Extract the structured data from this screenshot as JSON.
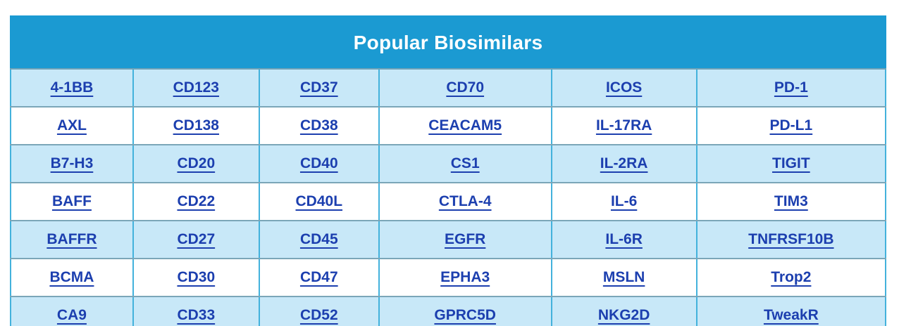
{
  "title": "Popular Biosimilars",
  "colors": {
    "header_bg": "#1b9ad2",
    "row_alt_bg": "#c8e8f8",
    "row_bg": "#ffffff",
    "vertical_border": "#43b2dc",
    "horizontal_border": "#7ba6b8",
    "link": "#1c3faf",
    "title_text": "#ffffff"
  },
  "table": {
    "column_count": 6,
    "column_widths_pct": [
      14.0,
      14.4,
      13.7,
      19.7,
      16.6,
      21.6
    ],
    "rows": [
      [
        "4-1BB",
        "CD123",
        "CD37",
        "CD70",
        "ICOS",
        "PD-1"
      ],
      [
        "AXL",
        "CD138",
        "CD38",
        "CEACAM5",
        "IL-17RA",
        "PD-L1"
      ],
      [
        "B7-H3",
        "CD20",
        "CD40",
        "CS1",
        "IL-2RA",
        "TIGIT"
      ],
      [
        "BAFF",
        "CD22",
        "CD40L",
        "CTLA-4",
        "IL-6",
        "TIM3"
      ],
      [
        "BAFFR",
        "CD27",
        "CD45",
        "EGFR",
        "IL-6R",
        "TNFRSF10B"
      ],
      [
        "BCMA",
        "CD30",
        "CD47",
        "EPHA3",
        "MSLN",
        "Trop2"
      ],
      [
        "CA9",
        "CD33",
        "CD52",
        "GPRC5D",
        "NKG2D",
        "TweakR"
      ]
    ]
  }
}
